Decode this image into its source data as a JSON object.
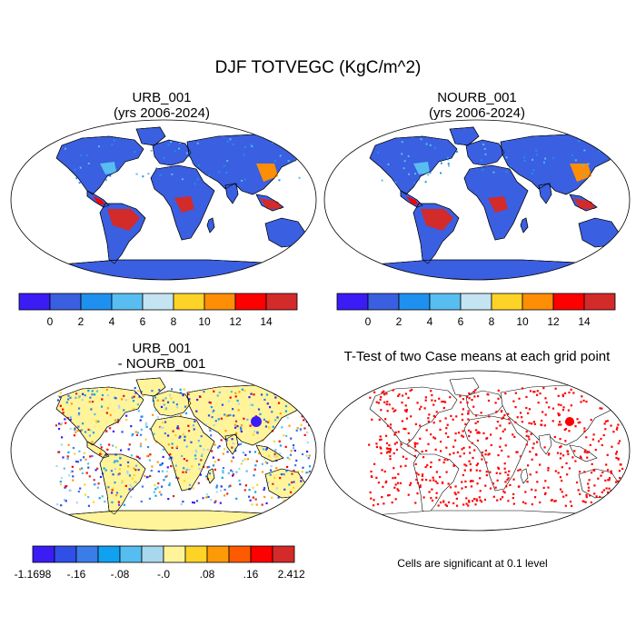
{
  "title": "DJF TOTVEGC (KgC/m^2)",
  "panels": [
    {
      "title_line1": "URB_001",
      "title_line2": "(yrs 2006-2024)"
    },
    {
      "title_line1": "NOURB_001",
      "title_line2": "(yrs 2006-2024)"
    },
    {
      "title_line1": "URB_001",
      "title_line2": "- NOURB_001"
    },
    {
      "title_line1": "T-Test of two Case means at each grid point",
      "title_line2": ""
    }
  ],
  "colorbar_abs": {
    "labels": [
      "0",
      "2",
      "4",
      "6",
      "8",
      "10",
      "12",
      "14"
    ],
    "colors": [
      "#3b1cf5",
      "#3a5fe0",
      "#1e90f0",
      "#58bdf0",
      "#c4e4f2",
      "#fdd327",
      "#fd8e06",
      "#fe0000",
      "#d32a2a"
    ]
  },
  "colorbar_diff": {
    "labels": [
      "-1.1698",
      "-.16",
      "-.08",
      "-.0",
      ".08",
      ".16",
      "2.4125"
    ],
    "colors": [
      "#3b1cf5",
      "#2f4fe6",
      "#3a7ce8",
      "#10a1f0",
      "#55bdf0",
      "#a8d8ee",
      "#fff49a",
      "#fdd327",
      "#fd9a07",
      "#fe5a00",
      "#fe0000",
      "#d32a2a"
    ]
  },
  "significance_note": "Cells are significant at 0.1 level"
}
